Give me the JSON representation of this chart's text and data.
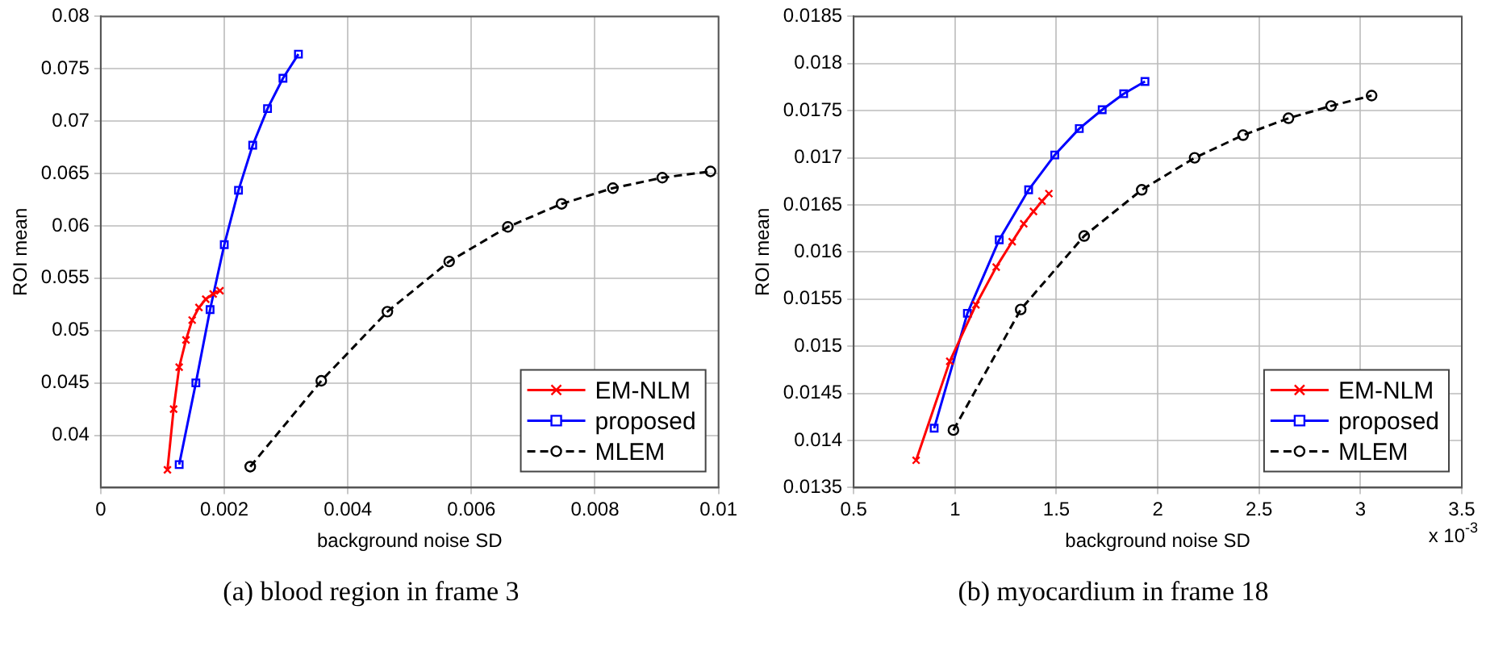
{
  "chart_data": [
    {
      "type": "line",
      "title": "(a) blood region in frame 3",
      "xlabel": "background noise SD",
      "ylabel": "ROI mean",
      "xlim": [
        0,
        0.01
      ],
      "xticks": [
        0,
        0.002,
        0.004,
        0.006,
        0.008,
        0.01
      ],
      "ylim": [
        0.035,
        0.08
      ],
      "yticks": [
        0.04,
        0.045,
        0.05,
        0.055,
        0.06,
        0.065,
        0.07,
        0.075,
        0.08
      ],
      "grid": true,
      "legend": "bottom right",
      "series": [
        {
          "name": "EM-NLM",
          "color": "#ff0000",
          "marker": "cross",
          "line_style": "solid",
          "x": [
            0.00108,
            0.00118,
            0.00127,
            0.00138,
            0.00148,
            0.00159,
            0.0017,
            0.00182,
            0.00193
          ],
          "values": [
            0.0367,
            0.0425,
            0.0465,
            0.0491,
            0.051,
            0.0522,
            0.053,
            0.0535,
            0.0538
          ]
        },
        {
          "name": "proposed",
          "color": "#0000ff",
          "marker": "square",
          "line_style": "solid",
          "x": [
            0.00127,
            0.00154,
            0.00177,
            0.002,
            0.00223,
            0.00246,
            0.0027,
            0.00295,
            0.0032
          ],
          "values": [
            0.0372,
            0.045,
            0.052,
            0.0582,
            0.0634,
            0.0677,
            0.0712,
            0.0741,
            0.0764
          ]
        },
        {
          "name": "MLEM",
          "color": "#000000",
          "marker": "circle",
          "line_style": "dashed",
          "x": [
            0.00242,
            0.00357,
            0.00464,
            0.00564,
            0.00659,
            0.00746,
            0.00829,
            0.00909,
            0.00987
          ],
          "values": [
            0.037,
            0.0452,
            0.0518,
            0.0566,
            0.0599,
            0.0621,
            0.0636,
            0.0646,
            0.0652
          ]
        }
      ]
    },
    {
      "type": "line",
      "title": "(b) myocardium in frame 18",
      "xlabel": "background noise SD",
      "ylabel": "ROI mean",
      "annotations": [
        "x 10$^{-3}$"
      ],
      "xlim": [
        0.5,
        3.5
      ],
      "xticks": [
        0.5,
        1,
        1.5,
        2,
        2.5,
        3,
        3.5
      ],
      "ylim": [
        0.0135,
        0.0185
      ],
      "yticks": [
        0.0135,
        0.014,
        0.0145,
        0.015,
        0.0155,
        0.016,
        0.0165,
        0.017,
        0.0175,
        0.018,
        0.0185
      ],
      "grid": true,
      "legend": "bottom right",
      "series": [
        {
          "name": "EM-NLM",
          "color": "#ff0000",
          "marker": "cross",
          "line_style": "solid",
          "x": [
            0.808,
            0.974,
            1.103,
            1.203,
            1.282,
            1.339,
            1.387,
            1.429,
            1.463
          ],
          "values": [
            0.01379,
            0.01484,
            0.01544,
            0.01584,
            0.01611,
            0.0163,
            0.01643,
            0.01654,
            0.01662
          ]
        },
        {
          "name": "proposed",
          "color": "#0000ff",
          "marker": "square",
          "line_style": "solid",
          "x": [
            0.897,
            1.061,
            1.218,
            1.363,
            1.492,
            1.613,
            1.726,
            1.832,
            1.937
          ],
          "values": [
            0.01413,
            0.01535,
            0.01613,
            0.01666,
            0.01703,
            0.01731,
            0.01751,
            0.01768,
            0.01781
          ]
        },
        {
          "name": "MLEM",
          "color": "#000000",
          "marker": "circle",
          "line_style": "dashed",
          "x": [
            0.992,
            1.324,
            1.637,
            1.921,
            2.182,
            2.421,
            2.645,
            2.855,
            3.055
          ],
          "values": [
            0.01411,
            0.01539,
            0.01617,
            0.01666,
            0.017,
            0.01724,
            0.01742,
            0.01755,
            0.01766
          ]
        }
      ]
    }
  ]
}
